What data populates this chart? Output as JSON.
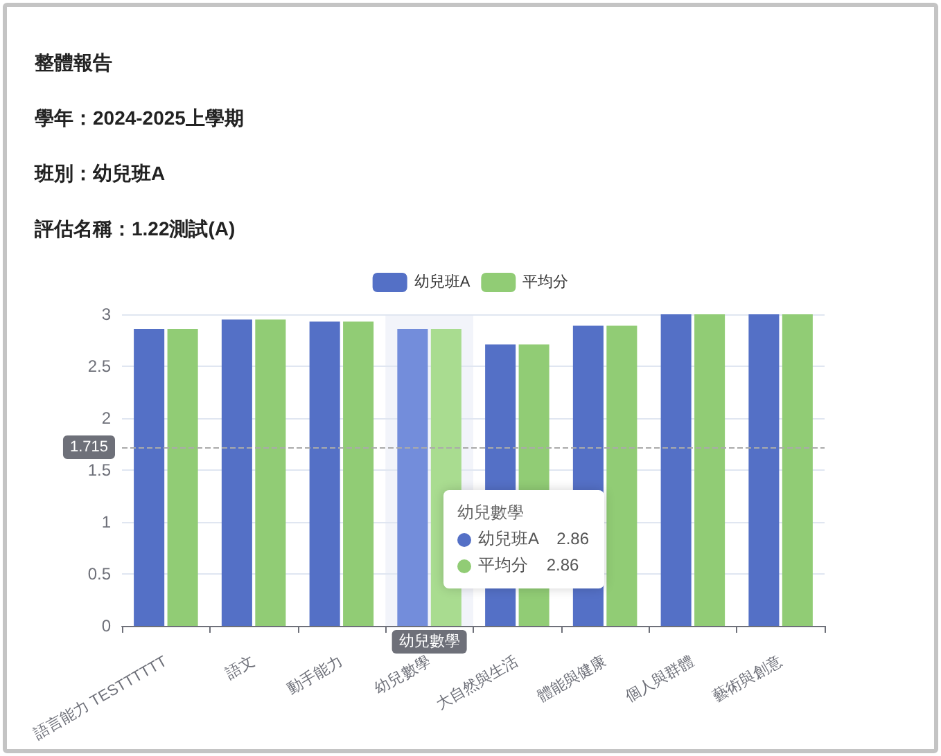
{
  "chart_data": {
    "type": "bar",
    "title": "整體報告",
    "subtitle": "學年：2024-2025上學期",
    "categories": [
      "語言能力 TESTTTTTT",
      "語文",
      "動手能力",
      "幼兒數學",
      "大自然與生活",
      "體能與健康",
      "個人與群體",
      "藝術與創意"
    ],
    "series": [
      {
        "name": "幼兒班A",
        "color": "#5470c6",
        "colors": [
          "#5470c6",
          "#5470c6",
          "#5470c6",
          "#738ddb",
          "#5470c6",
          "#5470c6",
          "#5470c6",
          "#5470c6"
        ],
        "values": [
          2.86,
          2.95,
          2.93,
          2.86,
          2.71,
          2.89,
          3,
          3
        ]
      },
      {
        "name": "平均分",
        "color": "#91cc75",
        "colors": [
          "#91cc75",
          "#91cc75",
          "#91cc75",
          "#a9dc90",
          "#91cc75",
          "#91cc75",
          "#91cc75",
          "#91cc75"
        ],
        "values": [
          2.86,
          2.95,
          2.93,
          2.86,
          2.71,
          2.89,
          3,
          3
        ]
      }
    ],
    "ylim": [
      0,
      3
    ],
    "yticks": [
      0,
      0.5,
      1,
      1.5,
      2,
      2.5,
      3
    ],
    "grid": "y",
    "legend": "top",
    "ref_lines": [
      {
        "axis": "y",
        "value": 1.715,
        "label": "1.715",
        "color": "#aaaaaa",
        "line_style": "dashed"
      }
    ],
    "bands": [
      {
        "axis": "x",
        "from": "幼兒數學",
        "to": "幼兒數學",
        "label": "幼兒數學",
        "color": "#f2f4fa"
      }
    ],
    "annotations": [
      "班別：幼兒班A",
      "評估名稱：1.22測試(A)",
      "幼兒班A 2.86",
      "平均分 2.86"
    ]
  }
}
